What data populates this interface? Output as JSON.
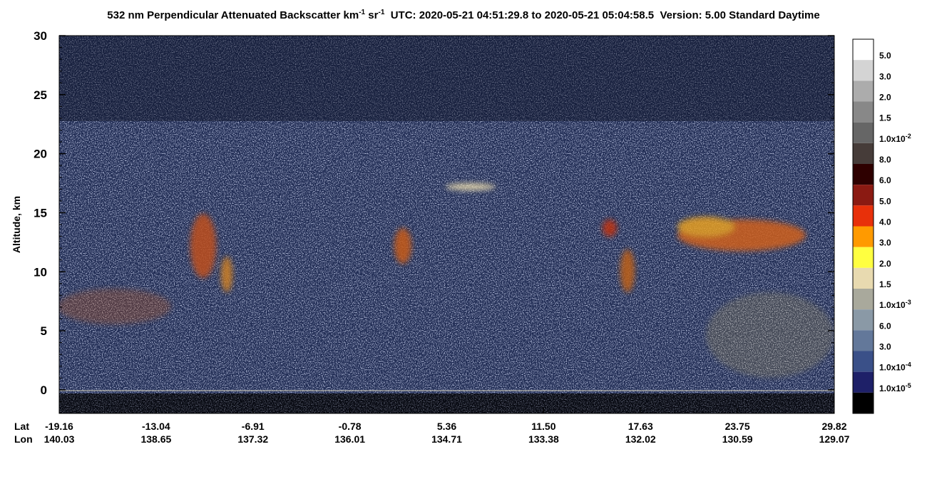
{
  "chart_data": {
    "type": "heatmap",
    "title_parts": [
      "532 nm Perpendicular Attenuated Backscatter km",
      "-1",
      " sr",
      "-1",
      "  UTC: 2020-05-21 04:51:29.8 to 2020-05-21 05:04:58.5  Version: 5.00 Standard Daytime"
    ],
    "y_label": "Altitude, km",
    "ylim": [
      -2,
      30
    ],
    "yticks": [
      0,
      5,
      10,
      15,
      20,
      25,
      30
    ],
    "x_row_names": [
      "Lat",
      "Lon"
    ],
    "lat_labels": [
      "-19.16",
      "-13.04",
      "-6.91",
      "-0.78",
      "5.36",
      "11.50",
      "17.63",
      "23.75",
      "29.82"
    ],
    "lon_labels": [
      "140.03",
      "138.65",
      "137.32",
      "136.01",
      "134.71",
      "133.38",
      "132.02",
      "130.59",
      "129.07"
    ],
    "colorbar": {
      "colors": [
        "#ffffff",
        "#d4d4d4",
        "#acacac",
        "#888888",
        "#666666",
        "#463c39",
        "#2e0000",
        "#8b1a12",
        "#e8300a",
        "#ff9a00",
        "#ffff40",
        "#e8dab0",
        "#a9a99c",
        "#8a99a6",
        "#63789a",
        "#3a5088",
        "#1e2068",
        "#000000"
      ],
      "labels": [
        "5.0",
        "3.0",
        "2.0",
        "1.5",
        {
          "text": "1.0x10",
          "sup": "-2"
        },
        "8.0",
        "6.0",
        "5.0",
        "4.0",
        "3.0",
        "2.0",
        "1.5",
        {
          "text": "1.0x10",
          "sup": "-3"
        },
        "6.0",
        "3.0",
        {
          "text": "1.0x10",
          "sup": "-4"
        },
        {
          "text": "1.0x10",
          "sup": "-5"
        }
      ]
    }
  }
}
